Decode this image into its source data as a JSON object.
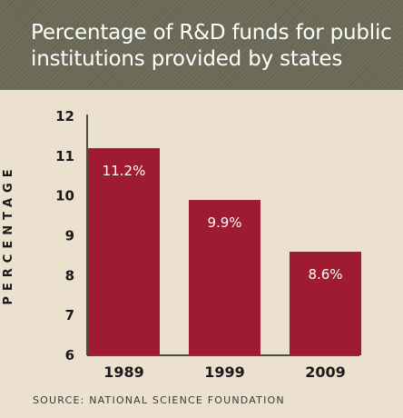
{
  "chart_data": {
    "type": "bar",
    "title": "Percentage of R&D funds for public institutions provided by states",
    "ylabel": "PERCENTAGE",
    "xlabel": "",
    "categories": [
      "1989",
      "1999",
      "2009"
    ],
    "values": [
      11.2,
      9.9,
      8.6
    ],
    "data_labels": [
      "11.2%",
      "9.9%",
      "8.6%"
    ],
    "ylim": [
      6,
      12
    ],
    "yticks": [
      "6",
      "7",
      "8",
      "9",
      "10",
      "11",
      "12"
    ],
    "grid": false,
    "legend": "none",
    "bar_color": "#9e1b32"
  },
  "source": "SOURCE: NATIONAL SCIENCE FOUNDATION",
  "colors": {
    "background": "#ece0cf",
    "header": "#6b6a57",
    "text": "#1a1a1a"
  }
}
